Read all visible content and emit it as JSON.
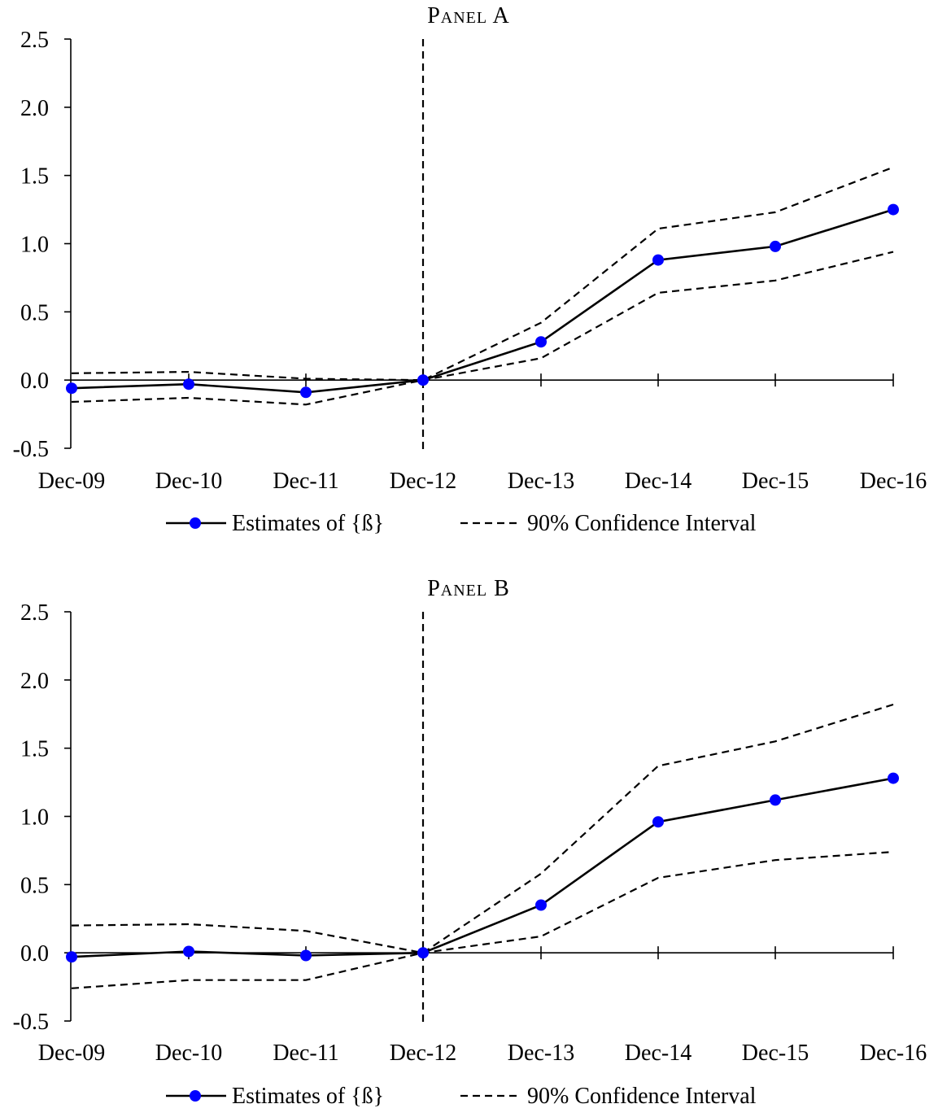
{
  "chart_data": [
    {
      "type": "line",
      "title": "Panel A",
      "categories": [
        "Dec-09",
        "Dec-10",
        "Dec-11",
        "Dec-12",
        "Dec-13",
        "Dec-14",
        "Dec-15",
        "Dec-16"
      ],
      "ylim": [
        -0.5,
        2.5
      ],
      "yticks": [
        "-0.5",
        "0.0",
        "0.5",
        "1.0",
        "1.5",
        "2.0",
        "2.5"
      ],
      "vline_at": "Dec-12",
      "legend": "bottom",
      "series": [
        {
          "name": "Estimates of {ß}",
          "style": "solid-markers",
          "values": [
            -0.06,
            -0.03,
            -0.09,
            0.0,
            0.28,
            0.88,
            0.98,
            1.25
          ]
        },
        {
          "name": "90% Confidence Interval",
          "style": "dashed",
          "values": [
            0.05,
            0.06,
            0.01,
            0.0,
            0.42,
            1.11,
            1.23,
            1.56
          ]
        },
        {
          "name": "",
          "style": "dashed",
          "values": [
            -0.16,
            -0.13,
            -0.18,
            0.0,
            0.16,
            0.64,
            0.73,
            0.94
          ]
        }
      ],
      "colors": {
        "marker": "#0000ff",
        "line": "#000000"
      }
    },
    {
      "type": "line",
      "title": "Panel B",
      "categories": [
        "Dec-09",
        "Dec-10",
        "Dec-11",
        "Dec-12",
        "Dec-13",
        "Dec-14",
        "Dec-15",
        "Dec-16"
      ],
      "ylim": [
        -0.5,
        2.5
      ],
      "yticks": [
        "-0.5",
        "0.0",
        "0.5",
        "1.0",
        "1.5",
        "2.0",
        "2.5"
      ],
      "vline_at": "Dec-12",
      "legend": "bottom",
      "series": [
        {
          "name": "Estimates of {ß}",
          "style": "solid-markers",
          "values": [
            -0.03,
            0.01,
            -0.02,
            0.0,
            0.35,
            0.96,
            1.12,
            1.28
          ]
        },
        {
          "name": "90% Confidence Interval",
          "style": "dashed",
          "values": [
            0.2,
            0.21,
            0.16,
            0.0,
            0.58,
            1.37,
            1.55,
            1.82
          ]
        },
        {
          "name": "",
          "style": "dashed",
          "values": [
            -0.26,
            -0.2,
            -0.2,
            0.0,
            0.12,
            0.55,
            0.68,
            0.74
          ]
        }
      ],
      "colors": {
        "marker": "#0000ff",
        "line": "#000000"
      }
    }
  ]
}
